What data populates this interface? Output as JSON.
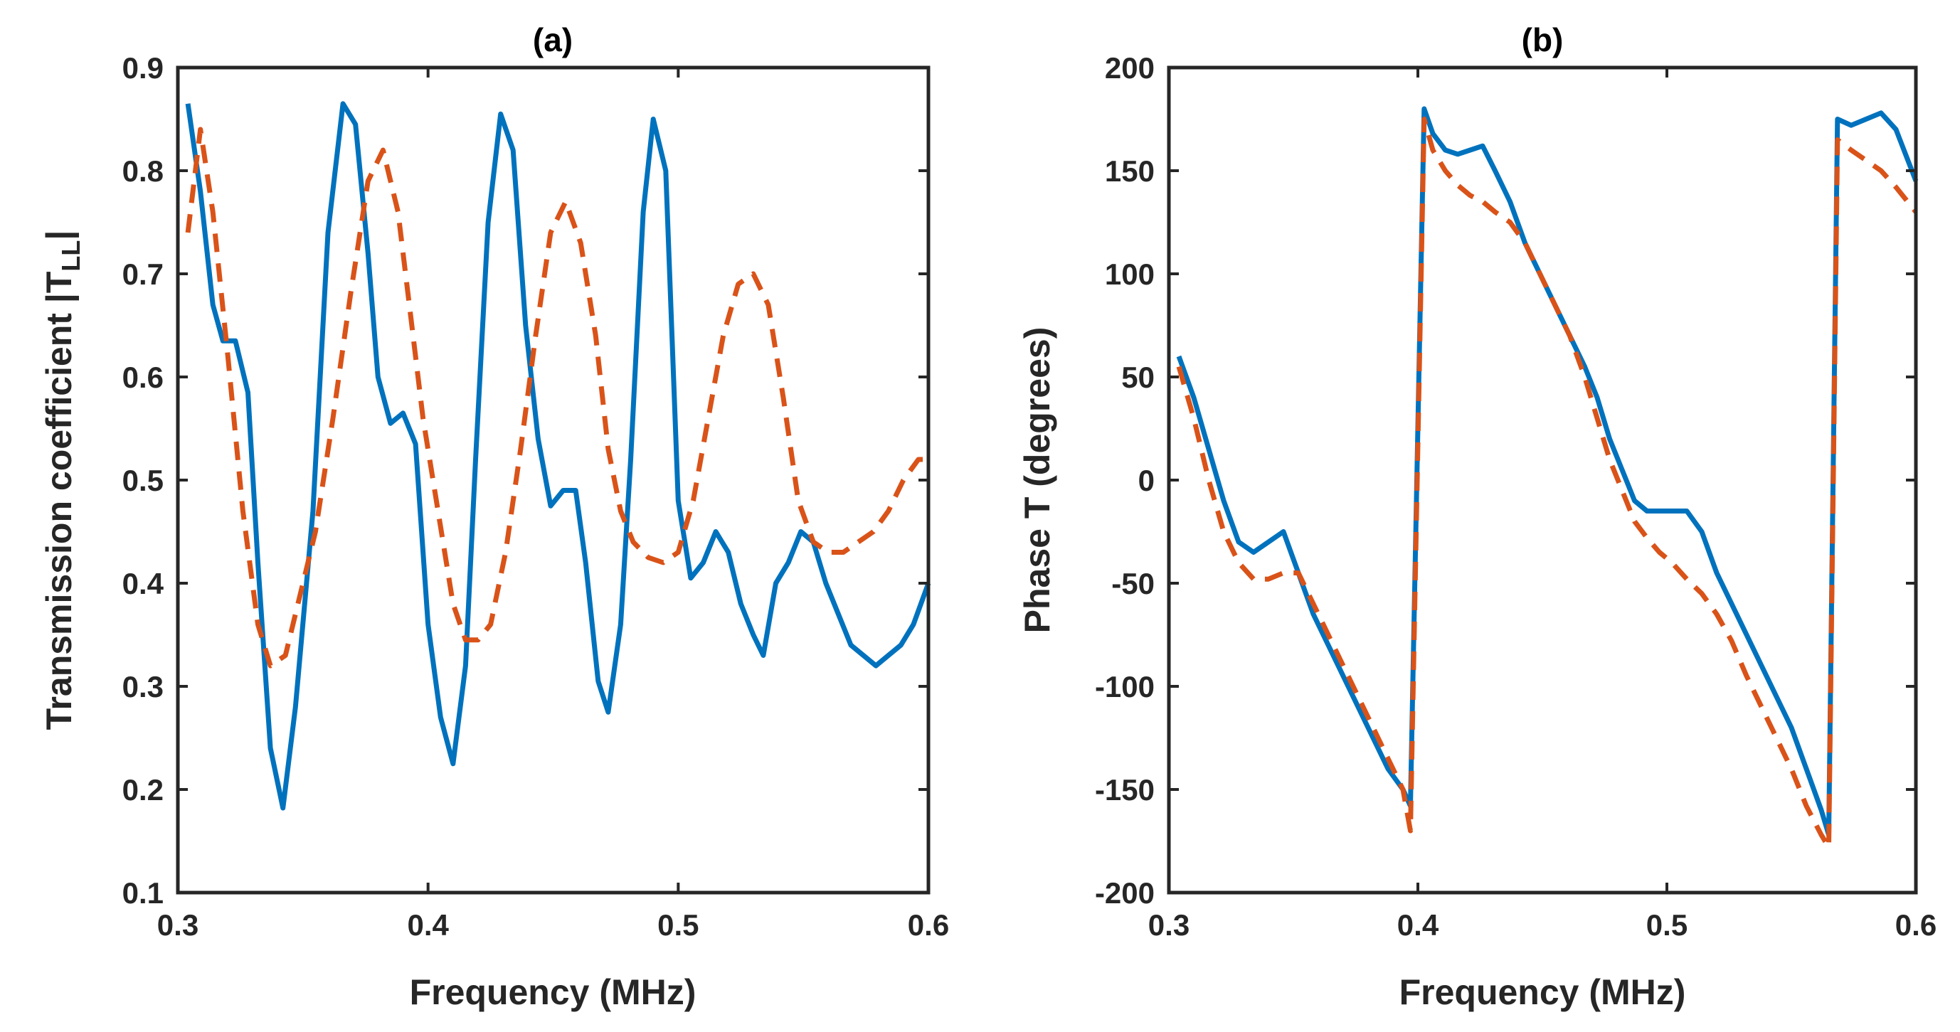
{
  "chart_data": [
    {
      "type": "line",
      "title": "(a)",
      "xlabel": "Frequency (MHz)",
      "ylabel": "Transmission coefficient |T",
      "ylabel_sub": "LL",
      "ylabel_end": "|",
      "xlim": [
        0.3,
        0.6
      ],
      "ylim": [
        0.1,
        0.9
      ],
      "xticks": [
        0.3,
        0.4,
        0.5,
        0.6
      ],
      "xtick_labels": [
        "0.3",
        "0.4",
        "0.5",
        "0.6"
      ],
      "yticks": [
        0.1,
        0.2,
        0.3,
        0.4,
        0.5,
        0.6,
        0.7,
        0.8,
        0.9
      ],
      "ytick_labels": [
        "0.1",
        "0.2",
        "0.3",
        "0.4",
        "0.5",
        "0.6",
        "0.7",
        "0.8",
        "0.9"
      ],
      "grid": false,
      "series": [
        {
          "name": "solid",
          "color": "#0072BD",
          "style": "solid",
          "x": [
            0.304,
            0.309,
            0.314,
            0.318,
            0.323,
            0.328,
            0.332,
            0.337,
            0.342,
            0.347,
            0.354,
            0.36,
            0.366,
            0.371,
            0.376,
            0.38,
            0.385,
            0.39,
            0.395,
            0.4,
            0.405,
            0.41,
            0.415,
            0.419,
            0.424,
            0.429,
            0.434,
            0.439,
            0.444,
            0.449,
            0.454,
            0.459,
            0.463,
            0.468,
            0.472,
            0.477,
            0.481,
            0.486,
            0.49,
            0.495,
            0.5,
            0.505,
            0.51,
            0.515,
            0.52,
            0.525,
            0.53,
            0.534,
            0.539,
            0.544,
            0.549,
            0.554,
            0.559,
            0.564,
            0.569,
            0.574,
            0.579,
            0.584,
            0.589,
            0.594,
            0.6
          ],
          "y": [
            0.865,
            0.78,
            0.67,
            0.635,
            0.635,
            0.585,
            0.42,
            0.24,
            0.182,
            0.28,
            0.47,
            0.74,
            0.865,
            0.845,
            0.72,
            0.6,
            0.555,
            0.565,
            0.535,
            0.36,
            0.27,
            0.225,
            0.32,
            0.52,
            0.75,
            0.855,
            0.82,
            0.65,
            0.54,
            0.475,
            0.49,
            0.49,
            0.42,
            0.305,
            0.275,
            0.36,
            0.52,
            0.76,
            0.85,
            0.8,
            0.48,
            0.405,
            0.42,
            0.45,
            0.43,
            0.38,
            0.35,
            0.33,
            0.4,
            0.42,
            0.45,
            0.44,
            0.4,
            0.37,
            0.34,
            0.33,
            0.32,
            0.33,
            0.34,
            0.36,
            0.4
          ]
        },
        {
          "name": "dashed",
          "color": "#D95319",
          "style": "dashed",
          "x": [
            0.304,
            0.309,
            0.314,
            0.32,
            0.326,
            0.332,
            0.337,
            0.343,
            0.348,
            0.355,
            0.362,
            0.369,
            0.376,
            0.382,
            0.388,
            0.393,
            0.398,
            0.404,
            0.41,
            0.415,
            0.42,
            0.425,
            0.431,
            0.437,
            0.443,
            0.449,
            0.455,
            0.461,
            0.467,
            0.472,
            0.477,
            0.482,
            0.488,
            0.494,
            0.5,
            0.506,
            0.512,
            0.518,
            0.524,
            0.53,
            0.536,
            0.542,
            0.548,
            0.554,
            0.56,
            0.566,
            0.572,
            0.578,
            0.584,
            0.59,
            0.596,
            0.6
          ],
          "y": [
            0.74,
            0.84,
            0.76,
            0.62,
            0.47,
            0.36,
            0.32,
            0.33,
            0.38,
            0.45,
            0.56,
            0.68,
            0.79,
            0.82,
            0.76,
            0.66,
            0.56,
            0.47,
            0.38,
            0.345,
            0.345,
            0.36,
            0.43,
            0.53,
            0.64,
            0.74,
            0.77,
            0.73,
            0.64,
            0.53,
            0.47,
            0.44,
            0.425,
            0.42,
            0.43,
            0.48,
            0.56,
            0.64,
            0.69,
            0.7,
            0.67,
            0.58,
            0.48,
            0.44,
            0.43,
            0.43,
            0.44,
            0.45,
            0.47,
            0.5,
            0.52,
            0.52
          ]
        }
      ]
    },
    {
      "type": "line",
      "title": "(b)",
      "xlabel": "Frequency (MHz)",
      "ylabel": "Phase T (degrees)",
      "xlim": [
        0.3,
        0.6
      ],
      "ylim": [
        -200,
        200
      ],
      "xticks": [
        0.3,
        0.4,
        0.5,
        0.6
      ],
      "xtick_labels": [
        "0.3",
        "0.4",
        "0.5",
        "0.6"
      ],
      "yticks": [
        -200,
        -150,
        -100,
        -50,
        0,
        50,
        100,
        150,
        200
      ],
      "ytick_labels": [
        "-200",
        "-150",
        "-100",
        "-50",
        "0",
        "50",
        "100",
        "150",
        "200"
      ],
      "grid": false,
      "series": [
        {
          "name": "solid",
          "color": "#0072BD",
          "style": "solid",
          "x": [
            0.304,
            0.31,
            0.316,
            0.322,
            0.328,
            0.334,
            0.34,
            0.346,
            0.352,
            0.358,
            0.364,
            0.37,
            0.376,
            0.382,
            0.388,
            0.394,
            0.397,
            0.4025,
            0.406,
            0.411,
            0.416,
            0.421,
            0.426,
            0.431,
            0.437,
            0.443,
            0.449,
            0.455,
            0.461,
            0.467,
            0.472,
            0.477,
            0.482,
            0.487,
            0.492,
            0.497,
            0.502,
            0.508,
            0.514,
            0.52,
            0.526,
            0.532,
            0.538,
            0.544,
            0.55,
            0.556,
            0.562,
            0.565,
            0.5685,
            0.574,
            0.58,
            0.586,
            0.592,
            0.6
          ],
          "y": [
            60,
            40,
            15,
            -10,
            -30,
            -35,
            -30,
            -25,
            -45,
            -65,
            -80,
            -95,
            -110,
            -125,
            -140,
            -150,
            -158,
            180,
            168,
            160,
            158,
            160,
            162,
            150,
            135,
            115,
            100,
            85,
            70,
            55,
            40,
            20,
            5,
            -10,
            -15,
            -15,
            -15,
            -15,
            -25,
            -45,
            -60,
            -75,
            -90,
            -105,
            -120,
            -140,
            -160,
            -172,
            175,
            172,
            175,
            178,
            170,
            145
          ]
        },
        {
          "name": "dashed",
          "color": "#D95319",
          "style": "dashed",
          "x": [
            0.304,
            0.31,
            0.316,
            0.322,
            0.328,
            0.334,
            0.34,
            0.346,
            0.352,
            0.358,
            0.364,
            0.37,
            0.376,
            0.382,
            0.388,
            0.394,
            0.397,
            0.4025,
            0.406,
            0.411,
            0.416,
            0.421,
            0.426,
            0.431,
            0.437,
            0.443,
            0.449,
            0.455,
            0.461,
            0.467,
            0.472,
            0.477,
            0.482,
            0.487,
            0.492,
            0.497,
            0.502,
            0.508,
            0.514,
            0.52,
            0.526,
            0.532,
            0.538,
            0.544,
            0.55,
            0.556,
            0.562,
            0.565,
            0.5685,
            0.574,
            0.58,
            0.586,
            0.592,
            0.6
          ],
          "y": [
            55,
            30,
            0,
            -25,
            -40,
            -48,
            -48,
            -45,
            -45,
            -60,
            -75,
            -90,
            -105,
            -120,
            -135,
            -150,
            -170,
            175,
            160,
            150,
            143,
            138,
            135,
            130,
            125,
            115,
            100,
            85,
            70,
            50,
            30,
            10,
            -5,
            -20,
            -28,
            -35,
            -40,
            -48,
            -55,
            -65,
            -78,
            -95,
            -110,
            -125,
            -140,
            -158,
            -172,
            -178,
            165,
            160,
            155,
            150,
            142,
            130
          ]
        }
      ]
    }
  ]
}
